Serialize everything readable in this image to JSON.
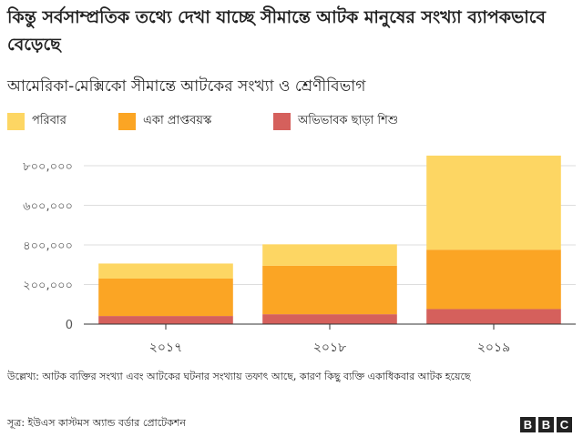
{
  "title": "কিন্তু সর্বসাম্প্রতিক তথ্যে দেখা যাচ্ছে সীমান্তে আটক মানুষের সংখ্যা ব্যাপকভাবে বেড়েছে",
  "subtitle": "আমেরিকা-মেক্সিকো সীমান্তে আটকের সংখ্যা ও শ্রেণীবিভাগ",
  "legend": [
    {
      "label": "পরিবার",
      "color": "#fdd663"
    },
    {
      "label": "একা প্রাপ্তবয়স্ক",
      "color": "#fba524"
    },
    {
      "label": "অভিভাবক ছাড়া শিশু",
      "color": "#d5605c"
    }
  ],
  "chart_data": {
    "type": "bar",
    "stacked": true,
    "categories": [
      "২০১৭",
      "২০১৮",
      "২০১৯"
    ],
    "series": [
      {
        "name": "অভিভাবক ছাড়া শিশু",
        "color": "#d5605c",
        "values": [
          41000,
          50000,
          76000
        ]
      },
      {
        "name": "একা প্রাপ্তবয়স্ক",
        "color": "#fba524",
        "values": [
          189000,
          245000,
          300000
        ]
      },
      {
        "name": "পরিবার",
        "color": "#fdd663",
        "values": [
          76000,
          108000,
          475000
        ]
      }
    ],
    "ylim": [
      0,
      800000
    ],
    "yticks": [
      {
        "value": 0,
        "label": "0"
      },
      {
        "value": 200000,
        "label": "২০০,০০০"
      },
      {
        "value": 400000,
        "label": "৪০০,০০০"
      },
      {
        "value": 600000,
        "label": "৬০০,০০০"
      },
      {
        "value": 800000,
        "label": "৮০০,০০০"
      }
    ],
    "grid": true,
    "legend_position": "top"
  },
  "note": "উল্লেখ্য: আটক ব্যক্তির সংখ্যা এবং আটকের ঘটনার সংখ্যায় তফাৎ আছে, কারণ কিছু ব্যক্তি একাধিকবার আটক হয়েছে",
  "source": "সূত্র: ইউএস কাস্টমস অ্যান্ড বর্ডার প্রোটেকশন",
  "logo": {
    "letters": [
      "B",
      "B",
      "C"
    ]
  }
}
